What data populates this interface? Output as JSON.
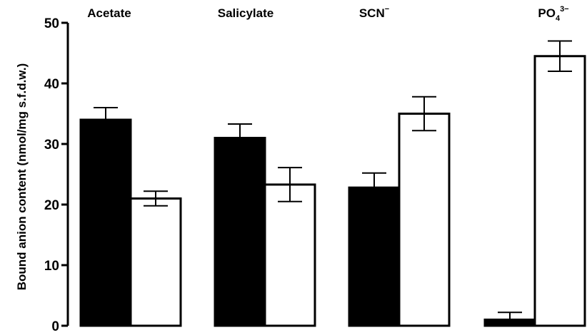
{
  "chart_data": {
    "type": "bar",
    "title": "",
    "xlabel": "",
    "ylabel": "Bound anion content (nmol/mg s.f.d.w.)",
    "ylim": [
      0,
      50
    ],
    "yticks": [
      0,
      10,
      20,
      30,
      40,
      50
    ],
    "categories": [
      {
        "base": "Acetate",
        "sup": "",
        "sub": ""
      },
      {
        "base": "Salicylate",
        "sup": "",
        "sub": ""
      },
      {
        "base": "SCN",
        "sup": "−",
        "sub": ""
      },
      {
        "base": "PO",
        "sub": "4",
        "sup": "3−"
      }
    ],
    "series": [
      {
        "fill": "#000000",
        "values": [
          34,
          31,
          22.8,
          1
        ],
        "errors": [
          2.0,
          2.3,
          2.4,
          1.2
        ]
      },
      {
        "fill": "#ffffff",
        "values": [
          21,
          23.3,
          35,
          44.5
        ],
        "errors": [
          1.2,
          2.8,
          2.8,
          2.5
        ]
      }
    ],
    "grid": false,
    "legend": "none"
  }
}
